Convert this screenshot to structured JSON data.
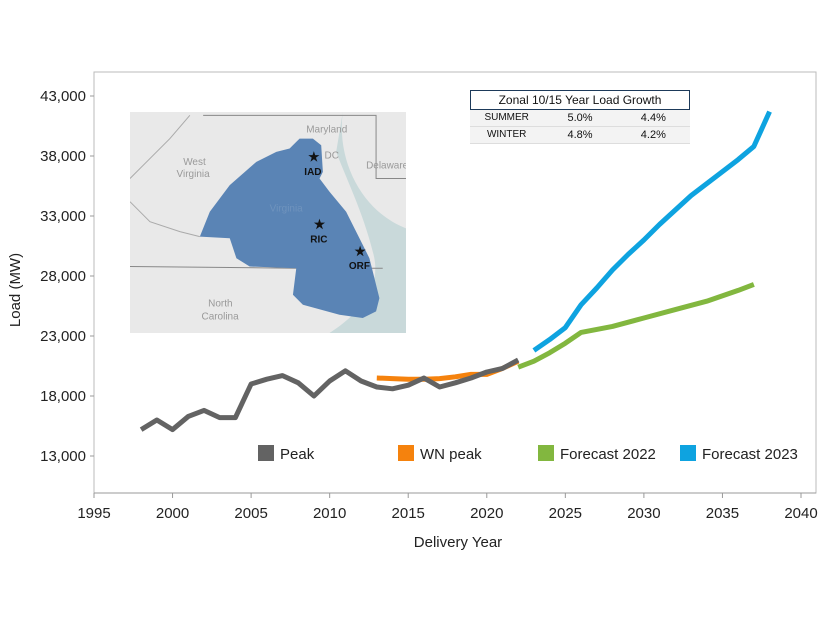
{
  "chart_data": {
    "type": "line",
    "title": "",
    "xlabel": "Delivery Year",
    "ylabel": "Load (MW)",
    "xlim": [
      1995,
      2040
    ],
    "ylim": [
      10000,
      45000
    ],
    "xticks": [
      "1995",
      "2000",
      "2005",
      "2010",
      "2015",
      "2020",
      "2025",
      "2030",
      "2035",
      "2040"
    ],
    "yticks": [
      "13,000",
      "18,000",
      "23,000",
      "28,000",
      "33,000",
      "38,000",
      "43,000"
    ],
    "grid": false,
    "legend_position": "bottom-inside",
    "series": [
      {
        "name": "Peak",
        "color": "#636363",
        "x": [
          1998,
          1999,
          2000,
          2001,
          2002,
          2003,
          2004,
          2005,
          2006,
          2007,
          2008,
          2009,
          2010,
          2011,
          2012,
          2013,
          2014,
          2015,
          2016,
          2017,
          2018,
          2019,
          2020,
          2021,
          2022
        ],
        "y": [
          15200,
          16000,
          15200,
          16300,
          16800,
          16200,
          16200,
          19000,
          19400,
          19700,
          19100,
          18000,
          19250,
          20100,
          19250,
          18750,
          18600,
          18900,
          19500,
          18750,
          19100,
          19500,
          20000,
          20300,
          21000
        ]
      },
      {
        "name": "WN peak",
        "color": "#f5820d",
        "x": [
          2013,
          2014,
          2015,
          2016,
          2017,
          2018,
          2019,
          2020,
          2021,
          2022
        ],
        "y": [
          19500,
          19450,
          19400,
          19400,
          19450,
          19600,
          19800,
          19800,
          20300,
          20900
        ]
      },
      {
        "name": "Forecast 2022",
        "color": "#82b73f",
        "x": [
          2022,
          2023,
          2024,
          2025,
          2026,
          2028,
          2030,
          2032,
          2034,
          2036,
          2037
        ],
        "y": [
          20400,
          20900,
          21600,
          22400,
          23300,
          23800,
          24500,
          25200,
          25900,
          26800,
          27300
        ]
      },
      {
        "name": "Forecast 2023",
        "color": "#0ea3e0",
        "x": [
          2023,
          2024,
          2025,
          2026,
          2027,
          2028,
          2029,
          2030,
          2031,
          2032,
          2033,
          2034,
          2035,
          2036,
          2037,
          2038
        ],
        "y": [
          21800,
          22700,
          23700,
          25600,
          27000,
          28500,
          29800,
          31000,
          32300,
          33500,
          34700,
          35700,
          36700,
          37700,
          38800,
          41700
        ]
      }
    ]
  },
  "inset_table": {
    "title": "Zonal 10/15 Year Load Growth",
    "rows": [
      {
        "label": "SUMMER",
        "ten_year": "5.0%",
        "fifteen_year": "4.4%"
      },
      {
        "label": "WINTER",
        "ten_year": "4.8%",
        "fifteen_year": "4.2%"
      }
    ]
  },
  "map": {
    "labels": {
      "md": "Maryland",
      "dc": "DC",
      "wv1": "West",
      "wv2": "Virginia",
      "de": "Delaware",
      "va": "Virginia",
      "nc1": "North",
      "nc2": "Carolina"
    },
    "cities": [
      "IAD",
      "RIC",
      "ORF"
    ],
    "zone_color": "#5a84b5"
  }
}
